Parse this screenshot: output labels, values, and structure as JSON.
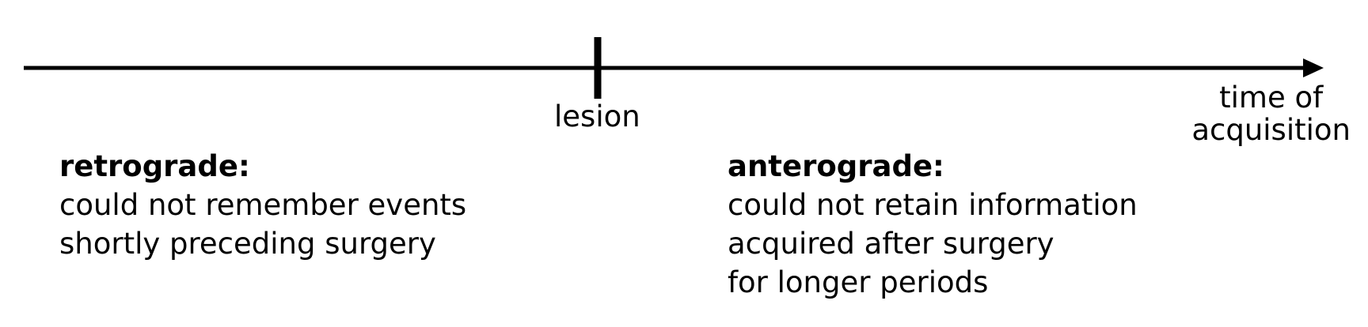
{
  "diagram": {
    "marker_label": "lesion",
    "axis_label_lines": [
      "time of",
      "acquisition"
    ],
    "retrograde": {
      "heading": "retrograde:",
      "lines": [
        "could not remember events",
        "shortly preceding surgery"
      ]
    },
    "anterograde": {
      "heading": "anterograde:",
      "lines": [
        "could not retain information",
        "acquired after surgery",
        "for longer periods"
      ]
    },
    "colors": {
      "line": "#000000",
      "text": "#000000",
      "background": "#ffffff"
    }
  }
}
